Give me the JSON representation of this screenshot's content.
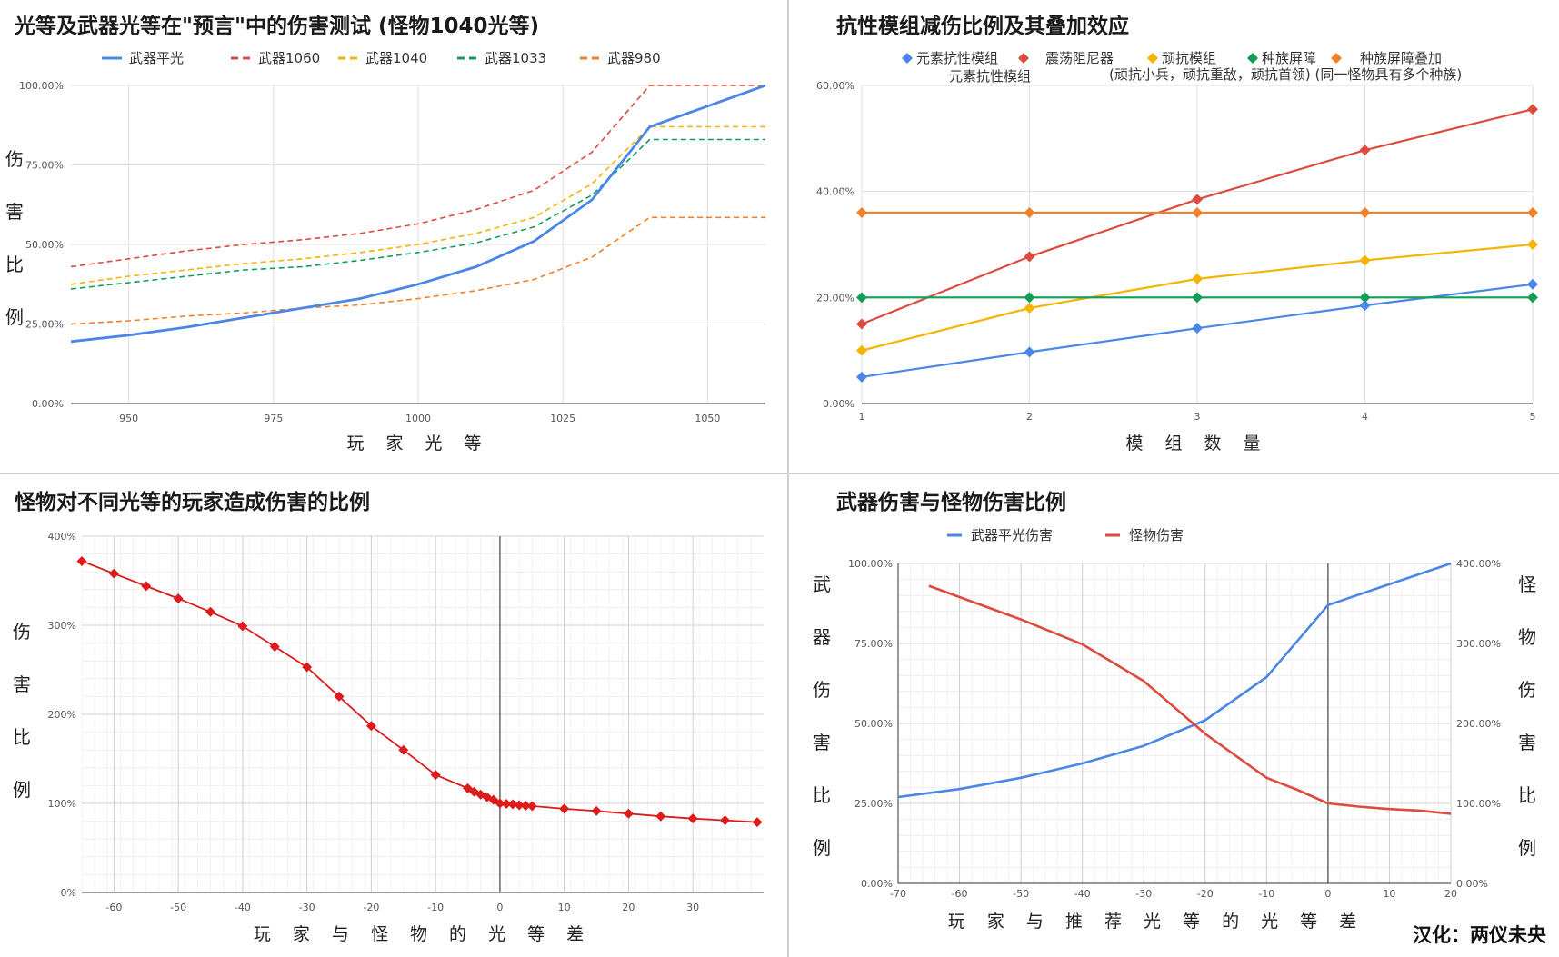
{
  "credit": "汉化：两仪未央",
  "charts": [
    {
      "type": "line",
      "title": "光等及武器光等在\"预言\"中的伤害测试 (怪物1040光等)",
      "xlabel": "玩 家 光 等",
      "ylabel_chars": [
        "伤",
        "害",
        "比",
        "例"
      ],
      "xlim": [
        940,
        1060
      ],
      "ylim": [
        0,
        1
      ],
      "xticks": [
        950,
        975,
        1000,
        1025,
        1050
      ],
      "yticks": [
        0,
        0.25,
        0.5,
        0.75,
        1.0
      ],
      "ytick_labels": [
        "0.00%",
        "25.00%",
        "50.00%",
        "75.00%",
        "100.00%"
      ],
      "x": [
        940,
        950,
        960,
        970,
        980,
        990,
        1000,
        1010,
        1020,
        1030,
        1040,
        1050,
        1060
      ],
      "series": [
        {
          "name": "武器平光",
          "color": "#4a86e8",
          "dash": false,
          "values": [
            0.195,
            0.215,
            0.24,
            0.27,
            0.3,
            0.33,
            0.375,
            0.43,
            0.51,
            0.64,
            0.87,
            0.935,
            1.0
          ]
        },
        {
          "name": "武器1060",
          "color": "#dd4b3e",
          "dash": true,
          "values": [
            0.43,
            0.455,
            0.48,
            0.5,
            0.515,
            0.535,
            0.565,
            0.61,
            0.67,
            0.79,
            1.0,
            1.0,
            1.0
          ]
        },
        {
          "name": "武器1040",
          "color": "#f4b400",
          "dash": true,
          "values": [
            0.375,
            0.4,
            0.42,
            0.44,
            0.455,
            0.475,
            0.5,
            0.535,
            0.585,
            0.69,
            0.87,
            0.87,
            0.87
          ]
        },
        {
          "name": "武器1033",
          "color": "#0f9d58",
          "dash": true,
          "values": [
            0.36,
            0.38,
            0.4,
            0.42,
            0.43,
            0.45,
            0.475,
            0.505,
            0.555,
            0.655,
            0.83,
            0.83,
            0.83
          ]
        },
        {
          "name": "武器980",
          "color": "#f0802a",
          "dash": true,
          "values": [
            0.25,
            0.26,
            0.275,
            0.285,
            0.3,
            0.31,
            0.33,
            0.355,
            0.39,
            0.46,
            0.585,
            0.585,
            0.585
          ]
        }
      ]
    },
    {
      "type": "line",
      "title": "抗性模组减伤比例及其叠加效应",
      "xlabel": "模 组 数 量",
      "xlim": [
        1,
        5
      ],
      "ylim": [
        0,
        0.6
      ],
      "xticks": [
        1,
        2,
        3,
        4,
        5
      ],
      "yticks": [
        0,
        0.2,
        0.4,
        0.6
      ],
      "ytick_labels": [
        "0.00%",
        "20.00%",
        "40.00%",
        "60.00%"
      ],
      "x": [
        1,
        2,
        3,
        4,
        5
      ],
      "legend_line1": [
        "元素抗性模组",
        "震荡阻尼器",
        "顽抗模组",
        "种族屏障",
        "种族屏障叠加"
      ],
      "legend_line2_a": "元素抗性模组",
      "legend_line2_b": "(顽抗小兵，顽抗重敌，顽抗首领) (同一怪物具有多个种族)",
      "series": [
        {
          "name": "元素抗性模组",
          "color": "#4a86e8",
          "values": [
            0.05,
            0.097,
            0.142,
            0.185,
            0.225
          ]
        },
        {
          "name": "震荡阻尼器",
          "color": "#dd4b3e",
          "values": [
            0.15,
            0.277,
            0.385,
            0.478,
            0.555
          ]
        },
        {
          "name": "顽抗模组",
          "color": "#f4b400",
          "values": [
            0.1,
            0.18,
            0.235,
            0.27,
            0.3
          ]
        },
        {
          "name": "种族屏障",
          "color": "#0f9d58",
          "values": [
            0.2,
            0.2,
            0.2,
            0.2,
            0.2
          ]
        },
        {
          "name": "种族屏障叠加",
          "color": "#f0802a",
          "values": [
            0.36,
            0.36,
            0.36,
            0.36,
            0.36
          ]
        }
      ]
    },
    {
      "type": "line",
      "title": "怪物对不同光等的玩家造成伤害的比例",
      "xlabel": "玩 家 与 怪 物 的 光 等 差",
      "ylabel_chars": [
        "伤",
        "害",
        "比",
        "例"
      ],
      "xlim": [
        -65,
        41
      ],
      "ylim": [
        0,
        4
      ],
      "xticks": [
        -60,
        -50,
        -40,
        -30,
        -20,
        -10,
        0,
        10,
        20,
        30
      ],
      "yticks": [
        0,
        1,
        2,
        3,
        4
      ],
      "ytick_labels": [
        "0%",
        "100%",
        "200%",
        "300%",
        "400%"
      ],
      "series": [
        {
          "name": "",
          "color": "#dd1b1b",
          "x": [
            -65,
            -60,
            -55,
            -50,
            -45,
            -40,
            -35,
            -30,
            -25,
            -20,
            -15,
            -10,
            -5,
            -4,
            -3,
            -2,
            -1,
            0,
            1,
            2,
            3,
            4,
            5,
            10,
            15,
            20,
            25,
            30,
            35,
            40
          ],
          "values": [
            3.72,
            3.58,
            3.44,
            3.3,
            3.15,
            2.99,
            2.76,
            2.53,
            2.2,
            1.87,
            1.6,
            1.32,
            1.17,
            1.13,
            1.1,
            1.07,
            1.04,
            1.0,
            0.995,
            0.99,
            0.98,
            0.975,
            0.97,
            0.94,
            0.915,
            0.885,
            0.855,
            0.83,
            0.81,
            0.79
          ]
        }
      ]
    },
    {
      "type": "line",
      "title": "武器伤害与怪物伤害比例",
      "xlabel": "玩 家 与 推 荐 光 等 的 光 等 差",
      "ylabel_left_chars": [
        "武",
        "器",
        "伤",
        "害",
        "比",
        "例"
      ],
      "ylabel_right_chars": [
        "怪",
        "物",
        "伤",
        "害",
        "比",
        "例"
      ],
      "xlim": [
        -70,
        20
      ],
      "ylim_left": [
        0,
        1
      ],
      "ylim_right": [
        0,
        4
      ],
      "xticks": [
        -70,
        -60,
        -50,
        -40,
        -30,
        -20,
        -10,
        0,
        10,
        20
      ],
      "yticks_left": [
        0,
        0.25,
        0.5,
        0.75,
        1.0
      ],
      "ytick_labels_left": [
        "0.00%",
        "25.00%",
        "50.00%",
        "75.00%",
        "100.00%"
      ],
      "ytick_labels_right": [
        "0.00%",
        "100.00%",
        "200.00%",
        "300.00%",
        "400.00%"
      ],
      "series": [
        {
          "name": "武器平光伤害",
          "axis": "left",
          "color": "#4a86e8",
          "x": [
            -70,
            -60,
            -50,
            -40,
            -30,
            -20,
            -10,
            0,
            10,
            20
          ],
          "values": [
            0.27,
            0.295,
            0.33,
            0.375,
            0.43,
            0.51,
            0.645,
            0.87,
            0.935,
            1.0
          ]
        },
        {
          "name": "怪物伤害",
          "axis": "right",
          "color": "#dd4b3e",
          "x": [
            -65,
            -60,
            -50,
            -40,
            -30,
            -20,
            -10,
            -5,
            0,
            5,
            10,
            15,
            20
          ],
          "values": [
            3.72,
            3.58,
            3.3,
            2.99,
            2.53,
            1.87,
            1.32,
            1.17,
            1.0,
            0.96,
            0.93,
            0.91,
            0.87
          ]
        }
      ]
    }
  ]
}
